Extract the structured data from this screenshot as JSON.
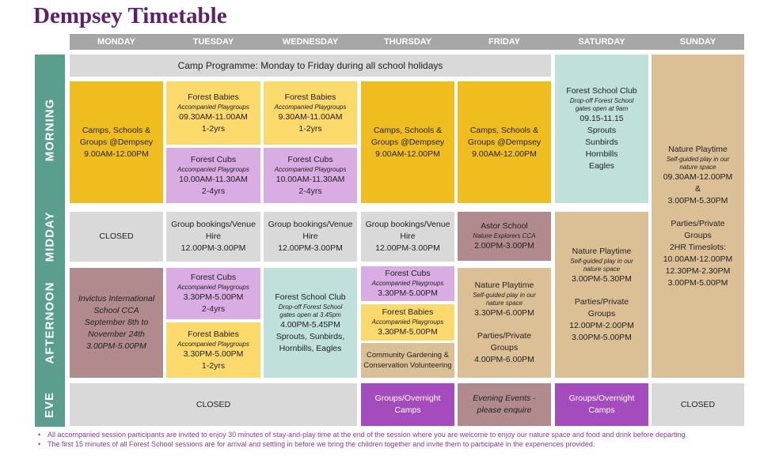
{
  "header": {
    "title": "Dempsey Timetable"
  },
  "days": [
    "MONDAY",
    "TUESDAY",
    "WEDNESDAY",
    "THURSDAY",
    "FRIDAY",
    "SATURDAY",
    "SUNDAY"
  ],
  "periods": [
    "MORNING",
    "MIDDAY",
    "AFTERNOON",
    "EVE"
  ],
  "cells": [
    [
      "Camp Programme: Monday to Friday during all school holidays"
    ],
    [
      "Camps, Schools &",
      "Groups @Dempsey",
      "9.00AM-12.00PM"
    ],
    [
      "Forest Babies",
      "Accompanied Playgroups",
      "09.30AM-11.00AM",
      "1-2yrs"
    ],
    [
      "Forest Cubs",
      "Accompanied Playgroups",
      "10.00AM-11.30AM",
      "2-4yrs"
    ],
    [
      "Forest Babies",
      "Accompanied Playgroups",
      "9.30AM-11.00AM",
      "1-2yrs"
    ],
    [
      "Forest Cubs",
      "Accompanied Playgroups",
      "10.00AM-11.30AM",
      "2-4yrs"
    ],
    [
      "Camps, Schools &",
      "Groups @Dempsey",
      "9.00AM-12.00PM"
    ],
    [
      "Camps, Schools &",
      "Groups @Dempsey",
      "9.00AM-12.00PM"
    ],
    [
      "Forest School Club",
      "Drop-off Forest School gates open at 9am",
      "09.15-11.15",
      "Sprouts",
      "Sunbirds",
      "Hornbills",
      "Eagles"
    ],
    [
      "Nature Playtime",
      "Self-guided play in our nature space",
      "09.30AM-12.00PM &",
      "3.00PM-5.30PM",
      "Parties/Private Groups",
      "2HR Timeslots:",
      "10.00AM-12.00PM",
      "12.30PM-2.30PM",
      "3.00PM-5.00PM"
    ],
    [
      "CLOSED"
    ],
    [
      "Group bookings/Venue Hire",
      "12.00PM-3.00PM"
    ],
    [
      "Group bookings/Venue Hire",
      "12.00PM-3.00PM"
    ],
    [
      "Group bookings/Venue Hire",
      "12.00PM-3.00PM"
    ],
    [
      "Astor School",
      "Nature Explorers CCA",
      "2.00PM-3.00PM"
    ],
    [
      "Nature Playtime",
      "Self-guided play in our nature space",
      "3.00PM-5.30PM",
      "Parties/Private Groups",
      "12.00PM-2.00PM",
      "3.00PM-5.00PM"
    ],
    [
      "Invictus International School CCA",
      "September 8th to November 24th",
      "3.00PM-5.00PM"
    ],
    [
      "Forest Cubs",
      "Accompanied Playgroups",
      "3.30PM-5.00PM",
      "2-4yrs"
    ],
    [
      "Forest Babies",
      "Accompanied Playgroups",
      "3.30PM-5.00PM",
      "1-2yrs"
    ],
    [
      "Forest School Club",
      "Drop-off Forest School gates open at 3.45pm",
      "4.00PM-5.45PM",
      "Sprouts, Sunbirds, Hornbills, Eagles"
    ],
    [
      "Forest Cubs",
      "Accompanied Playgroups",
      "3.30PM-5.00PM"
    ],
    [
      "Forest Babies",
      "Accompanied Playgroups",
      "3.30PM-5.00PM"
    ],
    [
      "Community Gardening & Conservation Volunteering"
    ],
    [
      "Nature Playtime",
      "Self-guided play in our nature space",
      "3.30PM-6.00PM",
      "Parties/Private Groups",
      "4.00PM-6.00PM"
    ],
    [
      "CLOSED"
    ],
    [
      "Groups/Overnight Camps"
    ],
    [
      "Evening Events - please enquire"
    ],
    [
      "Groups/Overnight Camps"
    ],
    [
      "CLOSED"
    ]
  ],
  "footnotes": [
    "All accompanied session participants are invited to enjoy 30 minutes of stay-and-play time at the end of the session where you are welcome to enjoy our nature space and food and drink before departing.",
    "The first 15 minutes of all Forest School sessions are for arrival and settling in before we bring the children together and invite them to participate in the experiences provided."
  ]
}
